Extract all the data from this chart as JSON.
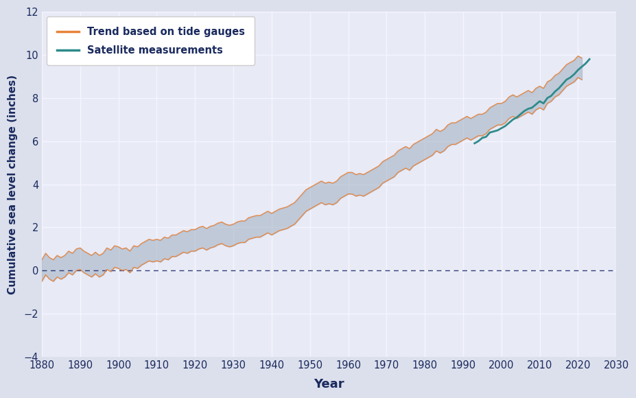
{
  "xlabel": "Year",
  "ylabel": "Cumulative sea level change (inches)",
  "xlim": [
    1880,
    2030
  ],
  "ylim": [
    -4,
    12
  ],
  "yticks": [
    -4,
    -2,
    0,
    2,
    4,
    6,
    8,
    10,
    12
  ],
  "xticks": [
    1880,
    1890,
    1900,
    1910,
    1920,
    1930,
    1940,
    1950,
    1960,
    1970,
    1980,
    1990,
    2000,
    2010,
    2020,
    2030
  ],
  "background_color": "#dfe3ef",
  "plot_bg_color": "#e8eaf6",
  "grid_color": "#f5f5ff",
  "tide_color": "#e8833a",
  "tide_band_color": "#a0afc0",
  "satellite_color": "#2e8b8b",
  "zero_line_color": "#1a2a6c",
  "legend_tide_label": "Trend based on tide gauges",
  "legend_satellite_label": "Satellite measurements",
  "tide_gauge_years": [
    1880,
    1881,
    1882,
    1883,
    1884,
    1885,
    1886,
    1887,
    1888,
    1889,
    1890,
    1891,
    1892,
    1893,
    1894,
    1895,
    1896,
    1897,
    1898,
    1899,
    1900,
    1901,
    1902,
    1903,
    1904,
    1905,
    1906,
    1907,
    1908,
    1909,
    1910,
    1911,
    1912,
    1913,
    1914,
    1915,
    1916,
    1917,
    1918,
    1919,
    1920,
    1921,
    1922,
    1923,
    1924,
    1925,
    1926,
    1927,
    1928,
    1929,
    1930,
    1931,
    1932,
    1933,
    1934,
    1935,
    1936,
    1937,
    1938,
    1939,
    1940,
    1941,
    1942,
    1943,
    1944,
    1945,
    1946,
    1947,
    1948,
    1949,
    1950,
    1951,
    1952,
    1953,
    1954,
    1955,
    1956,
    1957,
    1958,
    1959,
    1960,
    1961,
    1962,
    1963,
    1964,
    1965,
    1966,
    1967,
    1968,
    1969,
    1970,
    1971,
    1972,
    1973,
    1974,
    1975,
    1976,
    1977,
    1978,
    1979,
    1980,
    1981,
    1982,
    1983,
    1984,
    1985,
    1986,
    1987,
    1988,
    1989,
    1990,
    1991,
    1992,
    1993,
    1994,
    1995,
    1996,
    1997,
    1998,
    1999,
    2000,
    2001,
    2002,
    2003,
    2004,
    2005,
    2006,
    2007,
    2008,
    2009,
    2010,
    2011,
    2012,
    2013,
    2014,
    2015,
    2016,
    2017,
    2018,
    2019,
    2020,
    2021
  ],
  "tide_gauge_values": [
    0.0,
    0.3,
    0.1,
    0.0,
    0.2,
    0.1,
    0.2,
    0.4,
    0.3,
    0.5,
    0.55,
    0.4,
    0.3,
    0.2,
    0.35,
    0.2,
    0.3,
    0.55,
    0.45,
    0.65,
    0.6,
    0.5,
    0.55,
    0.4,
    0.65,
    0.6,
    0.75,
    0.85,
    0.95,
    0.9,
    0.95,
    0.9,
    1.05,
    1.0,
    1.15,
    1.15,
    1.25,
    1.35,
    1.3,
    1.4,
    1.4,
    1.5,
    1.55,
    1.45,
    1.55,
    1.6,
    1.7,
    1.75,
    1.65,
    1.6,
    1.65,
    1.75,
    1.8,
    1.8,
    1.95,
    2.0,
    2.05,
    2.05,
    2.15,
    2.25,
    2.15,
    2.25,
    2.35,
    2.4,
    2.45,
    2.55,
    2.65,
    2.85,
    3.05,
    3.25,
    3.35,
    3.45,
    3.55,
    3.65,
    3.55,
    3.6,
    3.55,
    3.65,
    3.85,
    3.95,
    4.05,
    4.05,
    3.95,
    4.0,
    3.95,
    4.05,
    4.15,
    4.25,
    4.35,
    4.55,
    4.65,
    4.75,
    4.85,
    5.05,
    5.15,
    5.25,
    5.15,
    5.35,
    5.45,
    5.55,
    5.65,
    5.75,
    5.85,
    6.05,
    5.95,
    6.05,
    6.25,
    6.35,
    6.35,
    6.45,
    6.55,
    6.65,
    6.55,
    6.65,
    6.75,
    6.75,
    6.85,
    7.05,
    7.15,
    7.25,
    7.25,
    7.35,
    7.55,
    7.65,
    7.55,
    7.65,
    7.75,
    7.85,
    7.75,
    7.95,
    8.05,
    7.95,
    8.25,
    8.35,
    8.55,
    8.65,
    8.85,
    9.05,
    9.15,
    9.25,
    9.45,
    9.35
  ],
  "tide_gauge_upper": [
    0.5,
    0.8,
    0.6,
    0.5,
    0.7,
    0.6,
    0.7,
    0.9,
    0.8,
    1.0,
    1.05,
    0.9,
    0.8,
    0.7,
    0.85,
    0.7,
    0.8,
    1.05,
    0.95,
    1.15,
    1.1,
    1.0,
    1.05,
    0.9,
    1.15,
    1.1,
    1.25,
    1.35,
    1.45,
    1.4,
    1.45,
    1.4,
    1.55,
    1.5,
    1.65,
    1.65,
    1.75,
    1.85,
    1.8,
    1.9,
    1.9,
    2.0,
    2.05,
    1.95,
    2.05,
    2.1,
    2.2,
    2.25,
    2.15,
    2.1,
    2.15,
    2.25,
    2.3,
    2.3,
    2.45,
    2.5,
    2.55,
    2.55,
    2.65,
    2.75,
    2.65,
    2.75,
    2.85,
    2.9,
    2.95,
    3.05,
    3.15,
    3.35,
    3.55,
    3.75,
    3.85,
    3.95,
    4.05,
    4.15,
    4.05,
    4.1,
    4.05,
    4.15,
    4.35,
    4.45,
    4.55,
    4.55,
    4.45,
    4.5,
    4.45,
    4.55,
    4.65,
    4.75,
    4.85,
    5.05,
    5.15,
    5.25,
    5.35,
    5.55,
    5.65,
    5.75,
    5.65,
    5.85,
    5.95,
    6.05,
    6.15,
    6.25,
    6.35,
    6.55,
    6.45,
    6.55,
    6.75,
    6.85,
    6.85,
    6.95,
    7.05,
    7.15,
    7.05,
    7.15,
    7.25,
    7.25,
    7.35,
    7.55,
    7.65,
    7.75,
    7.75,
    7.85,
    8.05,
    8.15,
    8.05,
    8.15,
    8.25,
    8.35,
    8.25,
    8.45,
    8.55,
    8.45,
    8.75,
    8.85,
    9.05,
    9.15,
    9.35,
    9.55,
    9.65,
    9.75,
    9.95,
    9.85
  ],
  "tide_gauge_lower": [
    -0.5,
    -0.2,
    -0.4,
    -0.5,
    -0.3,
    -0.4,
    -0.3,
    -0.1,
    -0.2,
    0.0,
    0.05,
    -0.1,
    -0.2,
    -0.3,
    -0.15,
    -0.3,
    -0.2,
    0.05,
    -0.05,
    0.15,
    0.1,
    0.0,
    0.05,
    -0.1,
    0.15,
    0.1,
    0.25,
    0.35,
    0.45,
    0.4,
    0.45,
    0.4,
    0.55,
    0.5,
    0.65,
    0.65,
    0.75,
    0.85,
    0.8,
    0.9,
    0.9,
    1.0,
    1.05,
    0.95,
    1.05,
    1.1,
    1.2,
    1.25,
    1.15,
    1.1,
    1.15,
    1.25,
    1.3,
    1.3,
    1.45,
    1.5,
    1.55,
    1.55,
    1.65,
    1.75,
    1.65,
    1.75,
    1.85,
    1.9,
    1.95,
    2.05,
    2.15,
    2.35,
    2.55,
    2.75,
    2.85,
    2.95,
    3.05,
    3.15,
    3.05,
    3.1,
    3.05,
    3.15,
    3.35,
    3.45,
    3.55,
    3.55,
    3.45,
    3.5,
    3.45,
    3.55,
    3.65,
    3.75,
    3.85,
    4.05,
    4.15,
    4.25,
    4.35,
    4.55,
    4.65,
    4.75,
    4.65,
    4.85,
    4.95,
    5.05,
    5.15,
    5.25,
    5.35,
    5.55,
    5.45,
    5.55,
    5.75,
    5.85,
    5.85,
    5.95,
    6.05,
    6.15,
    6.05,
    6.15,
    6.25,
    6.25,
    6.35,
    6.55,
    6.65,
    6.75,
    6.75,
    6.85,
    7.05,
    7.15,
    7.05,
    7.15,
    7.25,
    7.35,
    7.25,
    7.45,
    7.55,
    7.45,
    7.75,
    7.85,
    8.05,
    8.15,
    8.35,
    8.55,
    8.65,
    8.75,
    8.95,
    8.85
  ],
  "satellite_years": [
    1993,
    1994,
    1995,
    1996,
    1997,
    1998,
    1999,
    2000,
    2001,
    2002,
    2003,
    2004,
    2005,
    2006,
    2007,
    2008,
    2009,
    2010,
    2011,
    2012,
    2013,
    2014,
    2015,
    2016,
    2017,
    2018,
    2019,
    2020,
    2021,
    2022,
    2023
  ],
  "satellite_values": [
    5.9,
    6.0,
    6.15,
    6.2,
    6.4,
    6.45,
    6.5,
    6.6,
    6.7,
    6.85,
    7.0,
    7.1,
    7.25,
    7.4,
    7.5,
    7.55,
    7.7,
    7.85,
    7.75,
    8.0,
    8.1,
    8.3,
    8.45,
    8.65,
    8.85,
    8.95,
    9.1,
    9.3,
    9.45,
    9.6,
    9.8
  ]
}
